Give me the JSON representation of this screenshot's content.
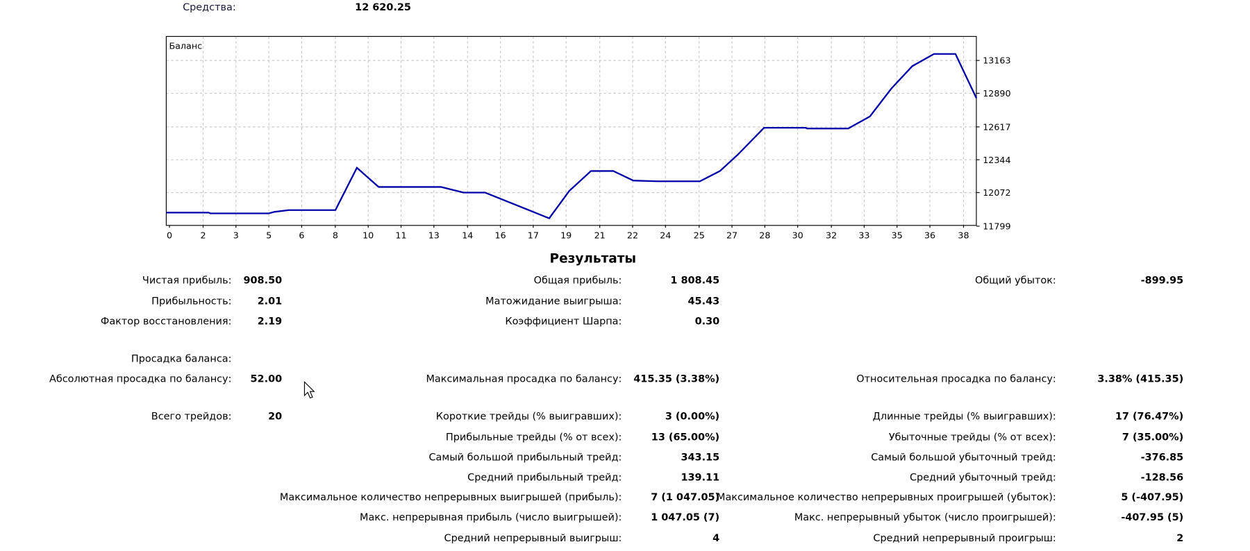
{
  "header": {
    "equity_label": "Средства:",
    "equity_value": "12 620.25"
  },
  "chart_data": {
    "type": "line",
    "title": "Баланс",
    "xlabel": "",
    "ylabel": "",
    "x_ticks": [
      "0",
      "2",
      "3",
      "5",
      "6",
      "8",
      "10",
      "11",
      "13",
      "14",
      "16",
      "17",
      "19",
      "21",
      "22",
      "24",
      "25",
      "27",
      "28",
      "30",
      "32",
      "33",
      "35",
      "36",
      "38"
    ],
    "y_ticks": [
      "11799",
      "12072",
      "12344",
      "12617",
      "12890",
      "13163"
    ],
    "xlim": [
      -0.15,
      38.65
    ],
    "ylim": [
      11799,
      13359
    ],
    "grid": true,
    "color": "#0000a8",
    "series": [
      {
        "name": "Баланс",
        "x": [
          -0.15,
          1.88,
          1.96,
          4.76,
          5.03,
          5.72,
          7.95,
          8.98,
          10.02,
          13.01,
          14.09,
          15.12,
          18.19,
          19.15,
          20.19,
          21.26,
          22.22,
          23.37,
          25.41,
          26.37,
          27.21,
          28.48,
          30.47,
          30.55,
          32.51,
          33.55,
          34.58,
          35.58,
          36.62,
          37.65,
          38.65
        ],
        "y": [
          11905,
          11905,
          11898,
          11898,
          11911,
          11925,
          11925,
          12275,
          12116,
          12116,
          12070,
          12070,
          11858,
          12083,
          12248,
          12248,
          12169,
          12163,
          12163,
          12248,
          12381,
          12605,
          12605,
          12599,
          12599,
          12698,
          12929,
          13114,
          13214,
          13214,
          12850
        ]
      }
    ]
  },
  "results": {
    "title": "Результаты",
    "rows": [
      [
        [
          "Чистая прибыль:",
          "908.50"
        ],
        [
          "Общая прибыль:",
          "1 808.45"
        ],
        [
          "Общий убыток:",
          "-899.95"
        ]
      ],
      [
        [
          "Прибыльность:",
          "2.01"
        ],
        [
          "Матожидание выигрыша:",
          "45.43"
        ],
        null
      ],
      [
        [
          "Фактор восстановления:",
          "2.19"
        ],
        [
          "Коэффициент Шарпа:",
          "0.30"
        ],
        null
      ],
      [
        [
          "Просадка баланса:",
          ""
        ],
        null,
        null
      ],
      [
        [
          "Абсолютная просадка по балансу:",
          "52.00"
        ],
        [
          "Максимальная просадка по балансу:",
          "415.35 (3.38%)"
        ],
        [
          "Относительная просадка по балансу:",
          "3.38% (415.35)"
        ]
      ],
      [
        [
          "Всего трейдов:",
          "20"
        ],
        [
          "Короткие трейды (% выигравших):",
          "3 (0.00%)"
        ],
        [
          "Длинные трейды (% выигравших):",
          "17 (76.47%)"
        ]
      ],
      [
        null,
        [
          "Прибыльные трейды (% от всех):",
          "13 (65.00%)"
        ],
        [
          "Убыточные трейды (% от всех):",
          "7 (35.00%)"
        ]
      ],
      [
        null,
        [
          "Самый большой прибыльный трейд:",
          "343.15"
        ],
        [
          "Самый большой убыточный трейд:",
          "-376.85"
        ]
      ],
      [
        null,
        [
          "Средний прибыльный трейд:",
          "139.11"
        ],
        [
          "Средний убыточный трейд:",
          "-128.56"
        ]
      ],
      [
        null,
        [
          "Максимальное количество непрерывных выигрышей (прибыль):",
          "7 (1 047.05)"
        ],
        [
          "Максимальное количество непрерывных проигрышей (убыток):",
          "5 (-407.95)"
        ]
      ],
      [
        null,
        [
          "Макс. непрерывная прибыль (число выигрышей):",
          "1 047.05 (7)"
        ],
        [
          "Макс. непрерывный убыток (число проигрышей):",
          "-407.95 (5)"
        ]
      ],
      [
        null,
        [
          "Средний непрерывный выигрыш:",
          "4"
        ],
        [
          "Средний непрерывный проигрыш:",
          "2"
        ]
      ]
    ]
  }
}
